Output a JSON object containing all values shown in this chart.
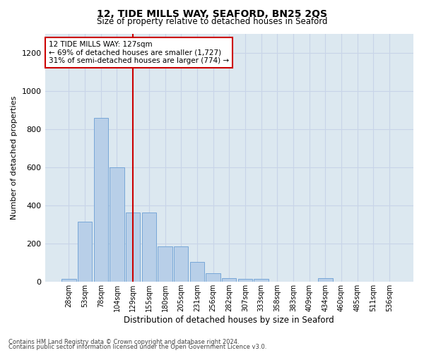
{
  "title1": "12, TIDE MILLS WAY, SEAFORD, BN25 2QS",
  "title2": "Size of property relative to detached houses in Seaford",
  "xlabel": "Distribution of detached houses by size in Seaford",
  "ylabel": "Number of detached properties",
  "categories": [
    "28sqm",
    "53sqm",
    "78sqm",
    "104sqm",
    "129sqm",
    "155sqm",
    "180sqm",
    "205sqm",
    "231sqm",
    "256sqm",
    "282sqm",
    "307sqm",
    "333sqm",
    "358sqm",
    "383sqm",
    "409sqm",
    "434sqm",
    "460sqm",
    "485sqm",
    "511sqm",
    "536sqm"
  ],
  "values": [
    15,
    315,
    860,
    600,
    365,
    365,
    185,
    185,
    105,
    45,
    20,
    15,
    15,
    0,
    0,
    0,
    20,
    0,
    0,
    0,
    0
  ],
  "bar_color": "#b8cfe8",
  "bar_edge_color": "#6b9fd4",
  "vline_x_index": 4,
  "vline_color": "#cc0000",
  "annotation_text": "12 TIDE MILLS WAY: 127sqm\n← 69% of detached houses are smaller (1,727)\n31% of semi-detached houses are larger (774) →",
  "annotation_box_color": "#ffffff",
  "annotation_box_edge": "#cc0000",
  "ylim": [
    0,
    1300
  ],
  "yticks": [
    0,
    200,
    400,
    600,
    800,
    1000,
    1200
  ],
  "grid_color": "#c8d4e8",
  "bg_color": "#dce8f0",
  "footer1": "Contains HM Land Registry data © Crown copyright and database right 2024.",
  "footer2": "Contains public sector information licensed under the Open Government Licence v3.0."
}
